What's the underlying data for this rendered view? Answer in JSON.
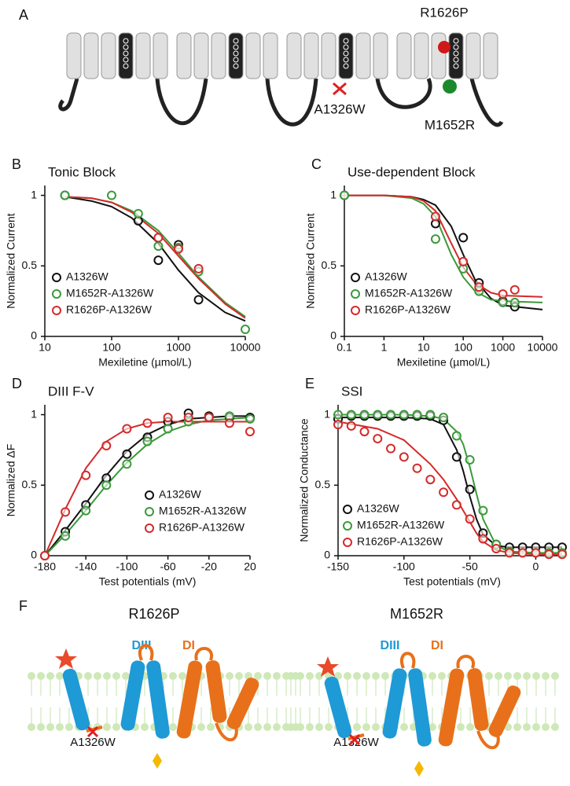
{
  "diagram_a": {
    "panel_label": "A",
    "labels": [
      "R1626P",
      "A1326W",
      "M1652R"
    ]
  },
  "chart_data": [
    {
      "type": "scatter",
      "panel_label": "B",
      "title": "Tonic Block",
      "x_label": "Mexiletine (µmol/L)",
      "y_label": "Normalized Current",
      "log_x": true,
      "xlim": [
        10,
        10000
      ],
      "xticks": [
        10,
        100,
        1000,
        10000
      ],
      "ylim": [
        0,
        1.07
      ],
      "yticks": [
        0,
        0.5,
        1
      ],
      "legend": "lower-left",
      "series": [
        {
          "name": "A1326W",
          "color": "#111111",
          "x": [
            20,
            250,
            500,
            1000,
            2000
          ],
          "values": [
            1.0,
            0.82,
            0.54,
            0.65,
            0.26
          ],
          "fit_x": [
            20,
            50,
            100,
            200,
            500,
            1000,
            2000,
            5000,
            10000
          ],
          "fit_values": [
            0.99,
            0.96,
            0.92,
            0.84,
            0.66,
            0.47,
            0.31,
            0.17,
            0.11
          ]
        },
        {
          "name": "M1652R-A1326W",
          "color": "#3a9a3a",
          "x": [
            20,
            100,
            250,
            500,
            1000,
            2000,
            10000
          ],
          "values": [
            1.0,
            1.0,
            0.87,
            0.64,
            0.63,
            0.46,
            0.05
          ],
          "fit_x": [
            20,
            50,
            100,
            200,
            500,
            1000,
            2000,
            5000,
            10000
          ],
          "fit_values": [
            0.99,
            0.98,
            0.95,
            0.89,
            0.75,
            0.59,
            0.42,
            0.24,
            0.14
          ]
        },
        {
          "name": "R1626P-A1326W",
          "color": "#d42a2a",
          "x": [
            500,
            1000,
            2000
          ],
          "values": [
            0.7,
            0.62,
            0.48
          ],
          "fit_x": [
            20,
            50,
            100,
            200,
            500,
            1000,
            2000,
            5000,
            10000
          ],
          "fit_values": [
            0.99,
            0.98,
            0.95,
            0.88,
            0.73,
            0.57,
            0.41,
            0.23,
            0.13
          ]
        }
      ]
    },
    {
      "type": "scatter",
      "panel_label": "C",
      "title": "Use-dependent Block",
      "x_label": "Mexiletine (µmol/L)",
      "y_label": "Normalized Current",
      "log_x": true,
      "xlim": [
        0.1,
        10000
      ],
      "xticks": [
        0.1,
        1,
        10,
        100,
        1000,
        10000
      ],
      "ylim": [
        0,
        1.07
      ],
      "yticks": [
        0,
        0.5,
        1
      ],
      "legend": "lower-left",
      "series": [
        {
          "name": "A1326W",
          "color": "#111111",
          "x": [
            0.1,
            20,
            100,
            250,
            1000,
            2000
          ],
          "values": [
            1.0,
            0.8,
            0.7,
            0.38,
            0.25,
            0.21
          ],
          "fit_x": [
            0.1,
            1,
            5,
            10,
            20,
            50,
            100,
            200,
            500,
            1000,
            10000
          ],
          "fit_values": [
            1,
            1,
            0.99,
            0.97,
            0.93,
            0.78,
            0.58,
            0.4,
            0.27,
            0.22,
            0.19
          ]
        },
        {
          "name": "M1652R-A1326W",
          "color": "#3a9a3a",
          "x": [
            0.1,
            20,
            100,
            250,
            1000,
            2000
          ],
          "values": [
            1.0,
            0.69,
            0.48,
            0.32,
            0.24,
            0.24
          ],
          "fit_x": [
            0.1,
            1,
            5,
            10,
            20,
            50,
            100,
            200,
            500,
            1000,
            10000
          ],
          "fit_values": [
            1,
            1,
            0.98,
            0.94,
            0.85,
            0.58,
            0.42,
            0.32,
            0.26,
            0.25,
            0.24
          ]
        },
        {
          "name": "R1626P-A1326W",
          "color": "#d42a2a",
          "x": [
            20,
            100,
            250,
            1000,
            2000
          ],
          "values": [
            0.85,
            0.53,
            0.35,
            0.3,
            0.33
          ],
          "fit_x": [
            0.1,
            1,
            5,
            10,
            20,
            50,
            100,
            200,
            500,
            1000,
            10000
          ],
          "fit_values": [
            1,
            1,
            0.99,
            0.96,
            0.89,
            0.66,
            0.49,
            0.38,
            0.31,
            0.29,
            0.28
          ]
        }
      ]
    },
    {
      "type": "scatter",
      "panel_label": "D",
      "title": "DIII F-V",
      "x_label": "Test potentials (mV)",
      "y_label": "Normalized ΔF",
      "log_x": false,
      "xlim": [
        -180,
        20
      ],
      "xticks": [
        -180,
        -140,
        -100,
        -60,
        -20,
        20
      ],
      "ylim": [
        0,
        1.07
      ],
      "yticks": [
        0,
        0.5,
        1
      ],
      "legend": "lower-right",
      "series": [
        {
          "name": "A1326W",
          "color": "#111111",
          "x": [
            -180,
            -160,
            -140,
            -120,
            -100,
            -80,
            -60,
            -40,
            -20,
            0,
            20
          ],
          "values": [
            0,
            0.17,
            0.36,
            0.55,
            0.72,
            0.84,
            0.95,
            1.01,
            0.99,
            0.98,
            0.98
          ],
          "fit_x": [
            -180,
            -160,
            -140,
            -120,
            -100,
            -80,
            -60,
            -40,
            -20,
            0,
            20
          ],
          "fit_values": [
            0,
            0.18,
            0.37,
            0.57,
            0.74,
            0.86,
            0.93,
            0.97,
            0.98,
            0.99,
            0.99
          ]
        },
        {
          "name": "M1652R-A1326W",
          "color": "#3a9a3a",
          "x": [
            -180,
            -160,
            -140,
            -120,
            -100,
            -80,
            -60,
            -40,
            -20,
            0,
            20
          ],
          "values": [
            0,
            0.14,
            0.32,
            0.5,
            0.65,
            0.81,
            0.9,
            0.95,
            0.98,
            0.99,
            0.97
          ],
          "fit_x": [
            -180,
            -160,
            -140,
            -120,
            -100,
            -80,
            -60,
            -40,
            -20,
            0,
            20
          ],
          "fit_values": [
            0,
            0.15,
            0.32,
            0.5,
            0.66,
            0.79,
            0.88,
            0.93,
            0.96,
            0.97,
            0.98
          ]
        },
        {
          "name": "R1626P-A1326W",
          "color": "#d42a2a",
          "x": [
            -180,
            -160,
            -140,
            -120,
            -100,
            -80,
            -60,
            -40,
            -20,
            0,
            20
          ],
          "values": [
            0,
            0.31,
            0.57,
            0.78,
            0.9,
            0.94,
            0.98,
            0.98,
            0.98,
            0.94,
            0.88
          ],
          "fit_x": [
            -180,
            -160,
            -140,
            -120,
            -100,
            -80,
            -60,
            -40,
            -20,
            0,
            20
          ],
          "fit_values": [
            0,
            0.33,
            0.62,
            0.81,
            0.9,
            0.94,
            0.95,
            0.95,
            0.95,
            0.95,
            0.95
          ]
        }
      ]
    },
    {
      "type": "scatter",
      "panel_label": "E",
      "title": "SSI",
      "x_label": "Test potentials (mV)",
      "y_label": "Normalized Conductance",
      "log_x": false,
      "xlim": [
        -150,
        23
      ],
      "xticks": [
        -150,
        -100,
        -50,
        0
      ],
      "ylim": [
        0,
        1.07
      ],
      "yticks": [
        0,
        0.5,
        1
      ],
      "legend": "lower-left",
      "series": [
        {
          "name": "A1326W",
          "color": "#111111",
          "x": [
            -150,
            -140,
            -130,
            -120,
            -110,
            -100,
            -90,
            -80,
            -70,
            -60,
            -50,
            -40,
            -30,
            -20,
            -10,
            0,
            10,
            20
          ],
          "values": [
            0.97,
            0.99,
            0.99,
            0.99,
            0.99,
            0.99,
            0.99,
            0.99,
            0.96,
            0.7,
            0.47,
            0.16,
            0.08,
            0.06,
            0.06,
            0.06,
            0.06,
            0.06
          ],
          "fit_x": [
            -150,
            -120,
            -100,
            -80,
            -70,
            -60,
            -55,
            -50,
            -45,
            -40,
            -30,
            -20,
            0,
            20
          ],
          "fit_values": [
            0.98,
            0.98,
            0.98,
            0.97,
            0.93,
            0.75,
            0.6,
            0.42,
            0.26,
            0.15,
            0.07,
            0.06,
            0.06,
            0.06
          ]
        },
        {
          "name": "M1652R-A1326W",
          "color": "#3a9a3a",
          "x": [
            -150,
            -140,
            -130,
            -120,
            -110,
            -100,
            -90,
            -80,
            -70,
            -60,
            -50,
            -40,
            -30,
            -20,
            -10,
            0,
            10,
            20
          ],
          "values": [
            1.0,
            1.0,
            1.0,
            1.0,
            1.0,
            1.0,
            1.0,
            1.0,
            0.98,
            0.85,
            0.68,
            0.32,
            0.08,
            0.03,
            0.02,
            0.02,
            0.02,
            0.02
          ],
          "fit_x": [
            -150,
            -120,
            -100,
            -80,
            -70,
            -60,
            -55,
            -50,
            -45,
            -40,
            -30,
            -20,
            0,
            20
          ],
          "fit_values": [
            1,
            1,
            1,
            0.99,
            0.97,
            0.88,
            0.79,
            0.63,
            0.44,
            0.26,
            0.07,
            0.03,
            0.02,
            0.02
          ]
        },
        {
          "name": "R1626P-A1326W",
          "color": "#d42a2a",
          "x": [
            -150,
            -140,
            -130,
            -120,
            -110,
            -100,
            -90,
            -80,
            -70,
            -60,
            -50,
            -40,
            -30,
            -20,
            -10,
            0,
            10,
            20
          ],
          "values": [
            0.93,
            0.92,
            0.88,
            0.83,
            0.76,
            0.7,
            0.62,
            0.54,
            0.45,
            0.36,
            0.26,
            0.12,
            0.05,
            0.02,
            0.02,
            0.02,
            0.01,
            0.01
          ],
          "fit_x": [
            -150,
            -120,
            -100,
            -80,
            -70,
            -60,
            -55,
            -50,
            -45,
            -40,
            -30,
            -20,
            0,
            20
          ],
          "fit_values": [
            0.95,
            0.9,
            0.82,
            0.65,
            0.54,
            0.4,
            0.32,
            0.24,
            0.16,
            0.1,
            0.04,
            0.02,
            0.01,
            0.01
          ]
        }
      ]
    }
  ],
  "diagram_f": {
    "panel_label": "F",
    "left": {
      "title": "R1626P",
      "domains": [
        "DIII",
        "DI"
      ],
      "mutation": "A1326W"
    },
    "right": {
      "title": "M1652R",
      "domains": [
        "DIII",
        "DI"
      ],
      "mutation": "A1326W"
    }
  }
}
